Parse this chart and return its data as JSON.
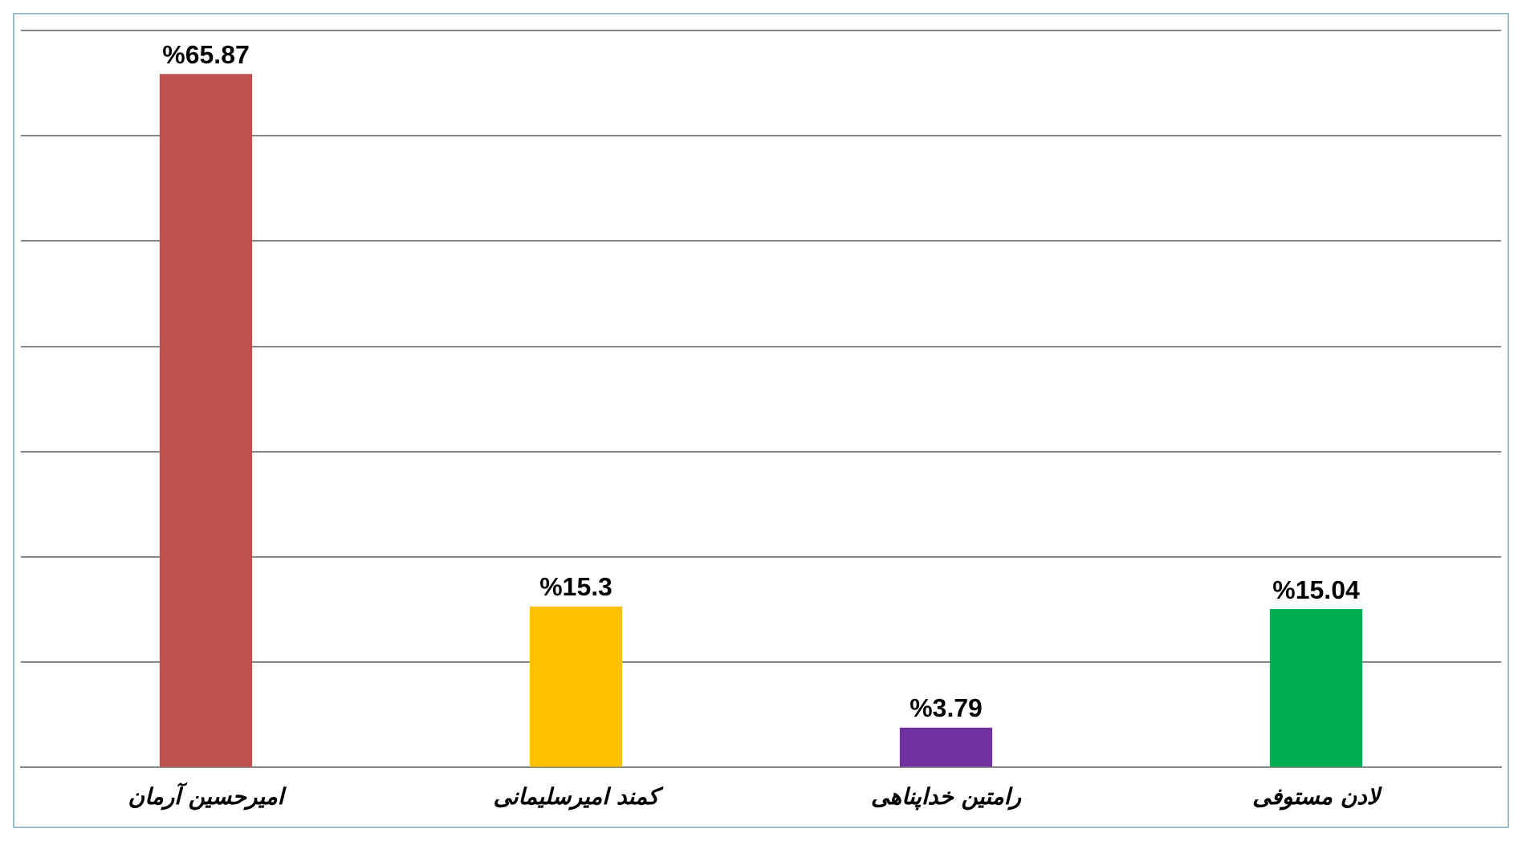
{
  "chart_data": {
    "type": "bar",
    "categories": [
      "امیرحسین آرمان",
      "کمند امیرسلیمانی",
      "رامتین خداپناهی",
      "لادن مستوفی"
    ],
    "values": [
      65.87,
      15.3,
      3.79,
      15.04
    ],
    "colors": [
      "#c0504d",
      "#ffc000",
      "#7030a0",
      "#00b050"
    ],
    "value_labels": [
      "%65.87",
      "%15.3",
      "%3.79",
      "%15.04"
    ],
    "grid": "y",
    "tick_labels": "x",
    "legend": false
  }
}
